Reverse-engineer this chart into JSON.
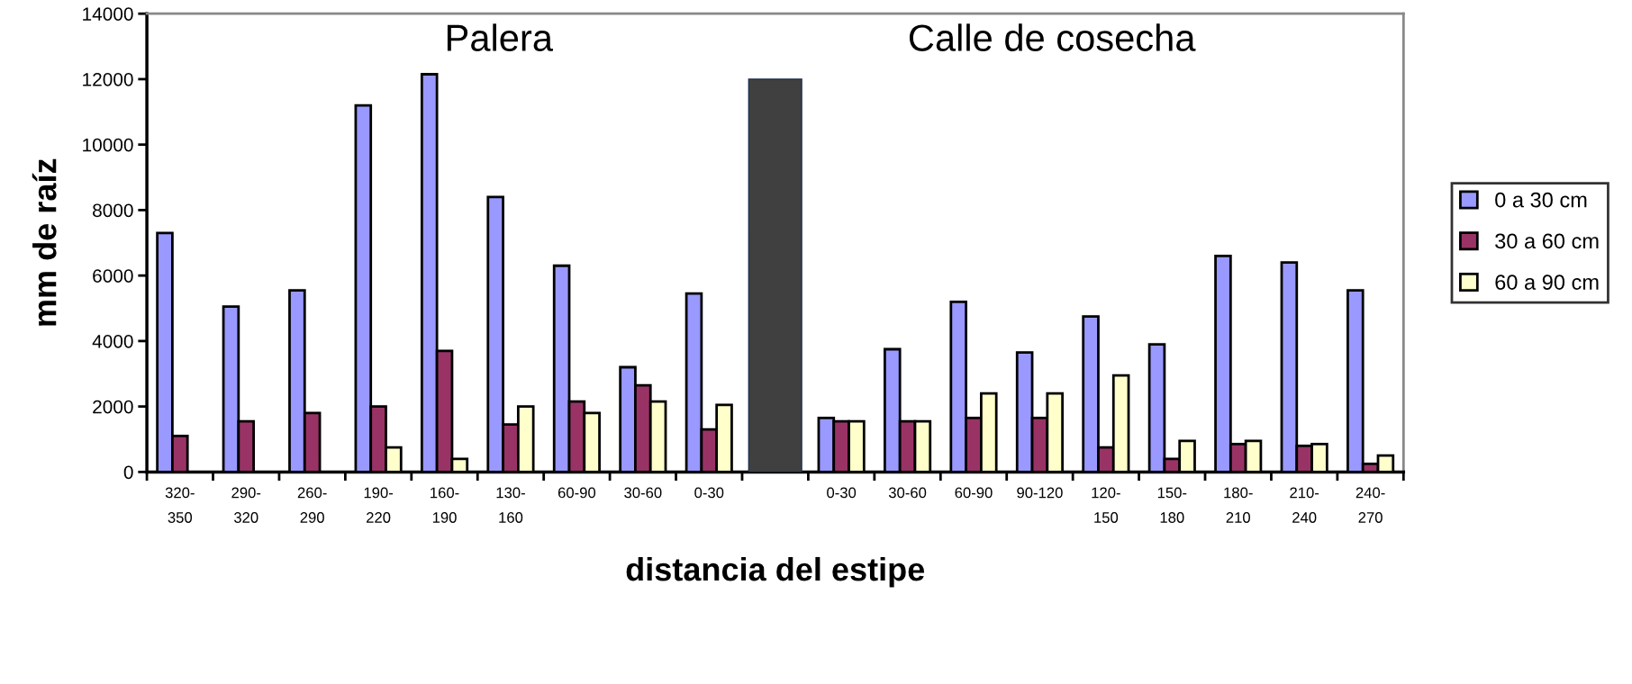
{
  "chart_data": {
    "type": "bar",
    "xlabel": "distancia del estipe",
    "ylabel": "mm de raíz",
    "annotations": [
      "Palera",
      "Calle de cosecha"
    ],
    "categories": [
      "320-\n350",
      "290-\n320",
      "260-\n290",
      "190-\n220",
      "160-\n190",
      "130-\n160",
      "60-90",
      "30-60",
      "0-30",
      null,
      "0-30",
      "30-60",
      "60-90",
      "90-120",
      "120-\n150",
      "150-\n180",
      "180-\n210",
      "210-\n240",
      "240-\n270"
    ],
    "series": [
      {
        "name": "0 a 30 cm",
        "color": "#9999ff",
        "values": [
          7300,
          5050,
          5550,
          11200,
          12150,
          8400,
          6300,
          3200,
          5450,
          null,
          1650,
          3750,
          5200,
          3650,
          4750,
          3900,
          6600,
          6400,
          5550
        ]
      },
      {
        "name": "30 a 60 cm",
        "color": "#993366",
        "values": [
          1100,
          1550,
          1800,
          2000,
          3700,
          1450,
          2150,
          2650,
          1300,
          null,
          1550,
          1550,
          1650,
          1650,
          750,
          400,
          850,
          800,
          250
        ]
      },
      {
        "name": "60 a 90 cm",
        "color": "#ffffcc",
        "values": [
          null,
          null,
          null,
          750,
          400,
          2000,
          1800,
          2150,
          2050,
          null,
          1550,
          1550,
          2400,
          2400,
          2950,
          950,
          950,
          850,
          500
        ]
      },
      {
        "color": "#404040",
        "values": [
          null,
          null,
          null,
          null,
          null,
          null,
          null,
          null,
          null,
          12000,
          null,
          null,
          null,
          null,
          null,
          null,
          null,
          null,
          null
        ]
      }
    ],
    "ylim": [
      0,
      14000
    ],
    "yticks": [
      0,
      2000,
      4000,
      6000,
      8000,
      10000,
      12000,
      14000
    ],
    "grid": false,
    "legend": "right"
  }
}
